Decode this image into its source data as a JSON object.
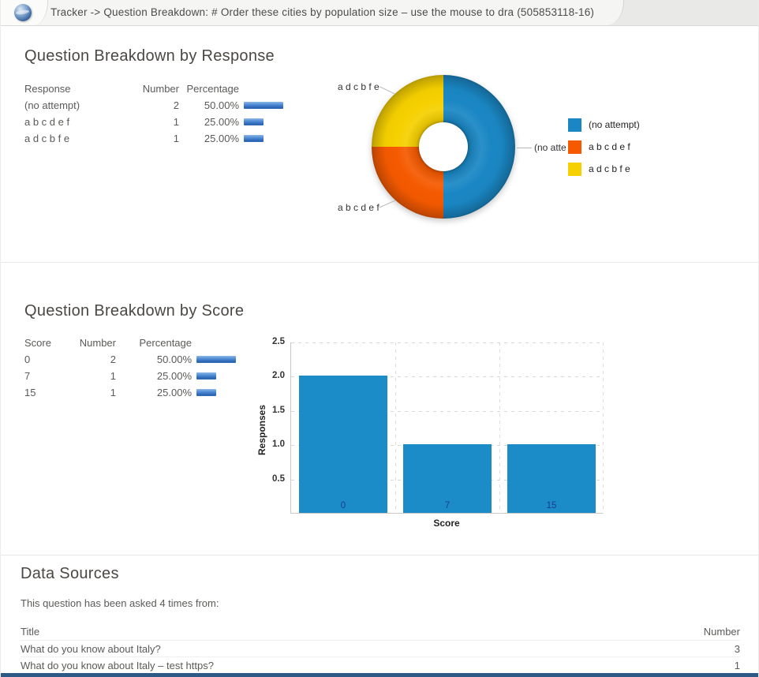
{
  "header": {
    "title": "Tracker -> Question Breakdown: # Order these cities by population size – use the mouse to dra (505853118-16)"
  },
  "response_section": {
    "heading": "Question Breakdown by Response",
    "table": {
      "headers": {
        "response": "Response",
        "number": "Number",
        "percentage": "Percentage"
      },
      "rows": [
        {
          "response": "(no attempt)",
          "number": "2",
          "percentage": "50.00%",
          "pct": 50
        },
        {
          "response": "a b c d e f",
          "number": "1",
          "percentage": "25.00%",
          "pct": 25
        },
        {
          "response": "a d c b f e",
          "number": "1",
          "percentage": "25.00%",
          "pct": 25
        }
      ]
    }
  },
  "score_section": {
    "heading": "Question Breakdown by Score",
    "table": {
      "headers": {
        "score": "Score",
        "number": "Number",
        "percentage": "Percentage"
      },
      "rows": [
        {
          "score": "0",
          "number": "2",
          "percentage": "50.00%",
          "pct": 50
        },
        {
          "score": "7",
          "number": "1",
          "percentage": "25.00%",
          "pct": 25
        },
        {
          "score": "15",
          "number": "1",
          "percentage": "25.00%",
          "pct": 25
        }
      ]
    }
  },
  "data_sources": {
    "heading": "Data Sources",
    "intro": "This question has been asked 4 times from:",
    "table": {
      "headers": {
        "title": "Title",
        "number": "Number"
      },
      "rows": [
        {
          "title": "What do you know about Italy?",
          "number": "3"
        },
        {
          "title": "What do you know about Italy – test https?",
          "number": "1"
        }
      ]
    }
  },
  "chart_data": [
    {
      "type": "pie",
      "subtype": "donut",
      "title": "Question Breakdown by Response",
      "slices": [
        {
          "label": "(no attempt)",
          "value": 2,
          "pct": 50,
          "color": "#1a87c4"
        },
        {
          "label": "a b c d e f",
          "value": 1,
          "pct": 25,
          "color": "#f55a00"
        },
        {
          "label": "a d c b f e",
          "value": 1,
          "pct": 25,
          "color": "#f6d000"
        }
      ],
      "legend_position": "right",
      "callouts_shown": true
    },
    {
      "type": "bar",
      "categories": [
        "0",
        "7",
        "15"
      ],
      "values": [
        2,
        1,
        1
      ],
      "xlabel": "Score",
      "ylabel": "Responses",
      "ylim": [
        0,
        2.5
      ],
      "yticks": [
        0.5,
        1.0,
        1.5,
        2.0,
        2.5
      ],
      "ytick_labels": [
        "2.5",
        "2.0",
        "1.5",
        "1.0",
        "0.5"
      ],
      "bar_color": "#1b8cc8",
      "grid": "dashed"
    }
  ],
  "colors": {
    "accent_bar_gradient_top": "#8db9e6",
    "accent_bar_gradient_bottom": "#2a62b0",
    "footer_bar": "#2d5986"
  }
}
